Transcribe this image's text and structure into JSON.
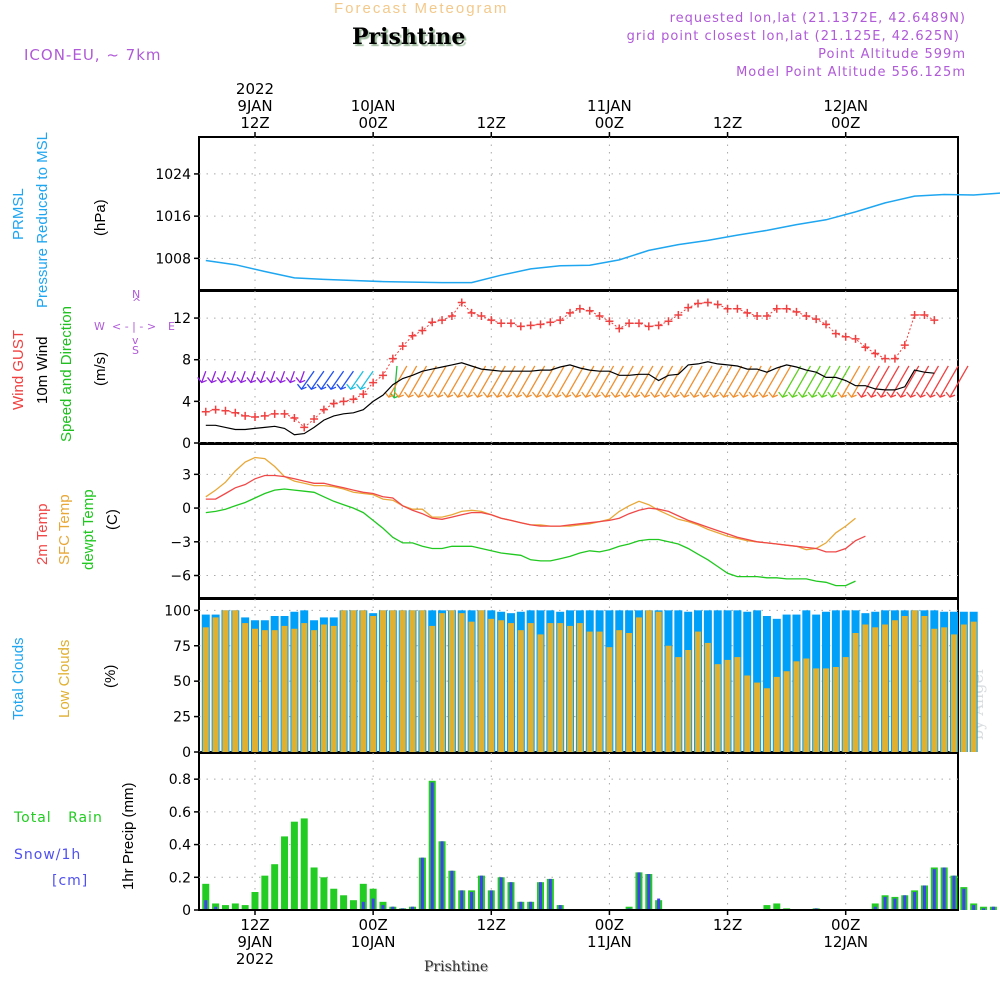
{
  "header": {
    "title": "Forecast Meteogram",
    "location": "Prishtine",
    "model": "ICON-EU, ~ 7km",
    "requested": "requested lon,lat (21.1372E, 42.6489N)",
    "grid_point": "grid point closest lon,lat (21.125E, 42.625N)",
    "point_altitude": "Point Altitude 599m",
    "model_altitude": "Model Point Altitude 556.125m"
  },
  "footer": {
    "location": "Prishtine",
    "credit": "by Angel"
  },
  "colors": {
    "pressure": "#1ea6f0",
    "gust": "#f04040",
    "wind": "#000000",
    "temp2m": "#f04848",
    "sfc_temp": "#e8a838",
    "dewpt": "#20c820",
    "total_clouds": "#00a0f8",
    "low_clouds": "#e0b030",
    "rain": "#22cc22",
    "snow": "#4040f0",
    "meta": "#b05ad8"
  },
  "time_axis": {
    "top": [
      {
        "hour": 12,
        "lines": [
          "2022",
          "9JAN",
          "12Z"
        ]
      },
      {
        "hour": 24,
        "lines": [
          "10JAN",
          "00Z"
        ]
      },
      {
        "hour": 36,
        "lines": [
          "12Z"
        ]
      },
      {
        "hour": 48,
        "lines": [
          "11JAN",
          "00Z"
        ]
      },
      {
        "hour": 60,
        "lines": [
          "12Z"
        ]
      },
      {
        "hour": 72,
        "lines": [
          "12JAN",
          "00Z"
        ]
      }
    ],
    "bottom": [
      {
        "hour": 12,
        "lines": [
          "12Z",
          "9JAN",
          "2022"
        ]
      },
      {
        "hour": 24,
        "lines": [
          "00Z",
          "10JAN"
        ]
      },
      {
        "hour": 36,
        "lines": [
          "12Z"
        ]
      },
      {
        "hour": 48,
        "lines": [
          "00Z",
          "11JAN"
        ]
      },
      {
        "hour": 60,
        "lines": [
          "12Z"
        ]
      },
      {
        "hour": 72,
        "lines": [
          "00Z",
          "12JAN"
        ]
      }
    ]
  },
  "panel_labels": {
    "pressure": {
      "line1": "PRMSL",
      "line2": "Pressure Reduced to MSL",
      "unit": "(hPa)"
    },
    "wind": {
      "gust": "Wind GUST",
      "wind10": "10m Wind",
      "dir": "Speed and Direction",
      "unit": "(m/s)",
      "compass": {
        "n": "N",
        "s": "S",
        "w": "W",
        "e": "E"
      }
    },
    "temp": {
      "t2m": "2m Temp",
      "sfc": "SFC Temp",
      "dew": "dewpt Temp",
      "unit": "(C)"
    },
    "clouds": {
      "total": "Total Clouds",
      "low": "Low Clouds",
      "unit": "(%)"
    },
    "precip": {
      "rain_a": "Total",
      "rain_b": "Rain",
      "snow": "Snow/1h",
      "snow_unit": "[cm]",
      "unit": "1hr Precip (mm)"
    }
  },
  "chart_data": [
    {
      "type": "line",
      "title": "PRMSL Pressure Reduced to MSL",
      "ylabel": "(hPa)",
      "ylim": [
        1002,
        1031
      ],
      "yticks": [
        1008,
        1016,
        1024
      ],
      "x_hours_start": 7,
      "x_hours_step": 3,
      "series": [
        {
          "name": "PRMSL",
          "values": [
            1007.6,
            1006.8,
            1005.5,
            1004.3,
            1004.0,
            1003.8,
            1003.6,
            1003.5,
            1003.4,
            1003.4,
            1004.8,
            1006.0,
            1006.6,
            1006.7,
            1007.7,
            1009.5,
            1010.6,
            1011.4,
            1012.4,
            1013.3,
            1014.4,
            1015.3,
            1016.8,
            1018.5,
            1019.8,
            1020.1,
            1020.0,
            1020.4,
            1022.0,
            1023.5,
            1024.5,
            1025.4,
            1026.3,
            1026.6,
            1027.0,
            1027.6,
            1028.5,
            1028.7
          ]
        }
      ]
    },
    {
      "type": "line",
      "title": "Wind GUST / 10m Wind Speed and Direction",
      "ylabel": "(m/s)",
      "ylim": [
        0,
        14.6
      ],
      "yticks": [
        0,
        4,
        8,
        12
      ],
      "x_hours_start": 7,
      "x_hours_step": 1,
      "series": [
        {
          "name": "Wind GUST",
          "values": [
            3.0,
            3.2,
            3.1,
            2.9,
            2.6,
            2.5,
            2.6,
            2.8,
            2.8,
            2.4,
            1.5,
            2.3,
            3.2,
            3.8,
            4.0,
            4.2,
            4.7,
            5.8,
            6.5,
            8.1,
            9.3,
            10.3,
            10.8,
            11.6,
            11.8,
            12.2,
            13.5,
            12.5,
            12.2,
            11.8,
            11.5,
            11.5,
            11.2,
            11.3,
            11.4,
            11.6,
            11.8,
            12.5,
            12.9,
            12.7,
            12.2,
            11.7,
            11.0,
            11.5,
            11.5,
            11.2,
            11.3,
            11.7,
            12.3,
            13.0,
            13.4,
            13.5,
            13.3,
            12.9,
            12.9,
            12.5,
            12.2,
            12.2,
            12.9,
            12.9,
            12.6,
            12.2,
            11.9,
            11.4,
            10.5,
            10.2,
            10.0,
            9.2,
            8.6,
            8.1,
            8.1,
            9.4,
            12.3,
            12.3,
            11.8
          ]
        },
        {
          "name": "10m Wind",
          "values": [
            1.7,
            1.7,
            1.5,
            1.3,
            1.3,
            1.4,
            1.5,
            1.6,
            1.4,
            0.8,
            0.9,
            1.5,
            2.2,
            2.6,
            2.8,
            2.9,
            3.2,
            4.0,
            4.6,
            5.6,
            6.2,
            6.5,
            6.9,
            7.1,
            7.3,
            7.5,
            7.7,
            7.4,
            7.1,
            7.0,
            6.9,
            6.9,
            6.9,
            6.9,
            7.0,
            7.0,
            7.3,
            7.5,
            7.2,
            7.0,
            6.9,
            6.9,
            6.5,
            6.5,
            6.6,
            6.6,
            6.0,
            6.5,
            6.6,
            7.5,
            7.6,
            7.8,
            7.6,
            7.5,
            7.4,
            7.1,
            7.1,
            6.8,
            7.2,
            7.5,
            7.3,
            7.0,
            6.8,
            6.3,
            6.3,
            6.0,
            5.5,
            5.5,
            5.2,
            5.1,
            5.1,
            5.4,
            7.0,
            6.8,
            6.7
          ]
        }
      ],
      "direction_arrows": [
        {
          "from_hour": 7,
          "to_hour": 17,
          "color": "#9020e0",
          "note": "from NW-N, short"
        },
        {
          "from_hour": 18,
          "to_hour": 22,
          "color": "#2050f0",
          "note": "from NW"
        },
        {
          "from_hour": 23,
          "to_hour": 24,
          "color": "#20c0e0",
          "note": "from NW"
        },
        {
          "from_hour": 25,
          "to_hour": 25,
          "color": "#20c040",
          "note": "from N"
        },
        {
          "from_hour": 26,
          "to_hour": 73,
          "color": "#f09030",
          "note": "from NNE"
        },
        {
          "from_hour": 66,
          "to_hour": 71,
          "color": "#60d020",
          "note": "from NNE"
        }
      ]
    },
    {
      "type": "line",
      "title": "2m Temp / SFC Temp / dewpt Temp",
      "ylabel": "(C)",
      "ylim": [
        -8.0,
        5.7
      ],
      "yticks": [
        -6,
        -3,
        0,
        3
      ],
      "x_hours_start": 7,
      "x_hours_step": 1,
      "series": [
        {
          "name": "2m Temp",
          "values": [
            0.8,
            0.8,
            1.3,
            1.8,
            2.1,
            2.6,
            2.9,
            2.9,
            2.8,
            2.6,
            2.4,
            2.2,
            2.2,
            2.0,
            1.8,
            1.6,
            1.4,
            1.3,
            1.0,
            0.9,
            0.2,
            -0.2,
            -0.5,
            -0.9,
            -1.0,
            -0.8,
            -0.6,
            -0.4,
            -0.4,
            -0.6,
            -0.9,
            -1.1,
            -1.3,
            -1.5,
            -1.6,
            -1.6,
            -1.6,
            -1.5,
            -1.4,
            -1.3,
            -1.2,
            -1.1,
            -0.9,
            -0.5,
            -0.2,
            0.0,
            -0.1,
            -0.3,
            -0.7,
            -1.1,
            -1.4,
            -1.7,
            -2.0,
            -2.3,
            -2.6,
            -2.8,
            -3.0,
            -3.1,
            -3.2,
            -3.3,
            -3.4,
            -3.5,
            -3.6,
            -3.9,
            -3.9,
            -3.6,
            -2.9,
            -2.5
          ]
        },
        {
          "name": "SFC Temp",
          "values": [
            1.0,
            1.6,
            2.3,
            3.3,
            4.1,
            4.5,
            4.4,
            3.7,
            2.8,
            2.4,
            2.2,
            2.0,
            2.0,
            1.9,
            1.7,
            1.4,
            1.3,
            1.2,
            0.8,
            0.7,
            0.2,
            -0.1,
            -0.1,
            -0.8,
            -0.8,
            -0.6,
            -0.3,
            -0.2,
            -0.3,
            -0.6,
            -0.9,
            -1.1,
            -1.3,
            -1.5,
            -1.5,
            -1.6,
            -1.6,
            -1.6,
            -1.5,
            -1.4,
            -1.2,
            -1.0,
            -0.3,
            0.2,
            0.6,
            0.3,
            -0.2,
            -0.6,
            -1.0,
            -1.2,
            -1.5,
            -1.9,
            -2.2,
            -2.5,
            -2.7,
            -2.9,
            -3.0,
            -3.1,
            -3.2,
            -3.3,
            -3.4,
            -3.7,
            -3.6,
            -3.1,
            -2.2,
            -1.6,
            -0.9
          ]
        },
        {
          "name": "dewpt Temp",
          "values": [
            -0.4,
            -0.3,
            -0.1,
            0.2,
            0.5,
            0.9,
            1.3,
            1.6,
            1.7,
            1.6,
            1.5,
            1.4,
            1.0,
            0.6,
            0.3,
            0.0,
            -0.4,
            -1.1,
            -1.8,
            -2.6,
            -3.1,
            -3.1,
            -3.4,
            -3.6,
            -3.6,
            -3.4,
            -3.4,
            -3.4,
            -3.6,
            -3.8,
            -4.0,
            -4.1,
            -4.2,
            -4.6,
            -4.7,
            -4.7,
            -4.5,
            -4.3,
            -4.0,
            -3.8,
            -3.9,
            -3.7,
            -3.4,
            -3.2,
            -2.9,
            -2.8,
            -2.8,
            -3.0,
            -3.2,
            -3.6,
            -4.1,
            -4.6,
            -5.2,
            -5.8,
            -6.1,
            -6.1,
            -6.1,
            -6.2,
            -6.2,
            -6.3,
            -6.3,
            -6.3,
            -6.5,
            -6.6,
            -6.9,
            -6.9,
            -6.5
          ]
        }
      ]
    },
    {
      "type": "bar",
      "title": "Total Clouds / Low Clouds",
      "ylabel": "(%)",
      "ylim": [
        0,
        108
      ],
      "yticks": [
        0,
        25,
        50,
        75,
        100
      ],
      "x_hours_start": 7,
      "x_hours_step": 1,
      "series": [
        {
          "name": "Total Clouds",
          "values": [
            97,
            97,
            100,
            100,
            95,
            93,
            93,
            96,
            96,
            99,
            100,
            93,
            95,
            95,
            100,
            100,
            100,
            98,
            100,
            100,
            100,
            100,
            100,
            100,
            100,
            100,
            100,
            100,
            100,
            100,
            99,
            98,
            99,
            100,
            100,
            100,
            99,
            100,
            100,
            100,
            100,
            100,
            100,
            100,
            100,
            100,
            100,
            100,
            100,
            99,
            100,
            100,
            100,
            100,
            100,
            99,
            100,
            96,
            94,
            97,
            97,
            100,
            97,
            99,
            100,
            100,
            100,
            98,
            99,
            100,
            100,
            100,
            100,
            100,
            100,
            99,
            99,
            99,
            99
          ]
        },
        {
          "name": "Low Clouds",
          "values": [
            88,
            95,
            100,
            100,
            91,
            87,
            86,
            86,
            89,
            87,
            91,
            86,
            90,
            89,
            100,
            100,
            100,
            96,
            100,
            100,
            100,
            100,
            100,
            89,
            98,
            100,
            98,
            92,
            100,
            94,
            93,
            91,
            86,
            91,
            83,
            91,
            91,
            89,
            91,
            85,
            85,
            74,
            86,
            84,
            95,
            100,
            99,
            75,
            67,
            72,
            85,
            77,
            62,
            65,
            67,
            54,
            49,
            45,
            53,
            57,
            64,
            66,
            59,
            59,
            60,
            67,
            84,
            90,
            88,
            90,
            93,
            96,
            100,
            96,
            87,
            88,
            83,
            90,
            92,
            85
          ]
        }
      ]
    },
    {
      "type": "bar",
      "title": "1hr Precip",
      "ylabel": "1hr Precip (mm)",
      "ylim": [
        0,
        0.96
      ],
      "yticks": [
        0,
        0.2,
        0.4,
        0.6,
        0.8
      ],
      "x_hours_start": 7,
      "x_hours_step": 1,
      "series": [
        {
          "name": "Total Rain",
          "values": [
            0.16,
            0.04,
            0.03,
            0.04,
            0.03,
            0.11,
            0.21,
            0.28,
            0.45,
            0.54,
            0.56,
            0.26,
            0.2,
            0.13,
            0.09,
            0.06,
            0.16,
            0.13,
            0.05,
            0.02,
            0.01,
            0.02,
            0.32,
            0.79,
            0.42,
            0.24,
            0.12,
            0.12,
            0.21,
            0.12,
            0.2,
            0.17,
            0.05,
            0.05,
            0.17,
            0.19,
            0.03,
            0,
            0,
            0,
            0,
            0,
            0,
            0.02,
            0.23,
            0.22,
            0.06,
            0,
            0,
            0,
            0,
            0,
            0,
            0,
            0,
            0,
            0,
            0.03,
            0.04,
            0.01,
            0,
            0,
            0.01,
            0,
            0,
            0,
            0,
            0,
            0.04,
            0.09,
            0.08,
            0.09,
            0.12,
            0.15,
            0.26,
            0.26,
            0.21,
            0.14,
            0.04,
            0.02,
            0.02
          ]
        },
        {
          "name": "Snow/1h",
          "values": [
            0.06,
            0.02,
            0,
            0,
            0,
            0,
            0,
            0,
            0,
            0,
            0,
            0,
            0,
            0,
            0,
            0,
            0.05,
            0.07,
            0.03,
            0.02,
            0.01,
            0.02,
            0.32,
            0.78,
            0.42,
            0.24,
            0.12,
            0.11,
            0.21,
            0.12,
            0.2,
            0.17,
            0.05,
            0.05,
            0.17,
            0.19,
            0.03,
            0,
            0,
            0,
            0,
            0,
            0,
            0.01,
            0.23,
            0.22,
            0.07,
            0,
            0,
            0,
            0,
            0,
            0,
            0,
            0,
            0,
            0,
            0,
            0,
            0,
            0,
            0,
            0.01,
            0,
            0,
            0,
            0,
            0,
            0.02,
            0.08,
            0.07,
            0.09,
            0.11,
            0.15,
            0.25,
            0.26,
            0.21,
            0.13,
            0.03,
            0.01,
            0.02
          ]
        }
      ]
    }
  ]
}
